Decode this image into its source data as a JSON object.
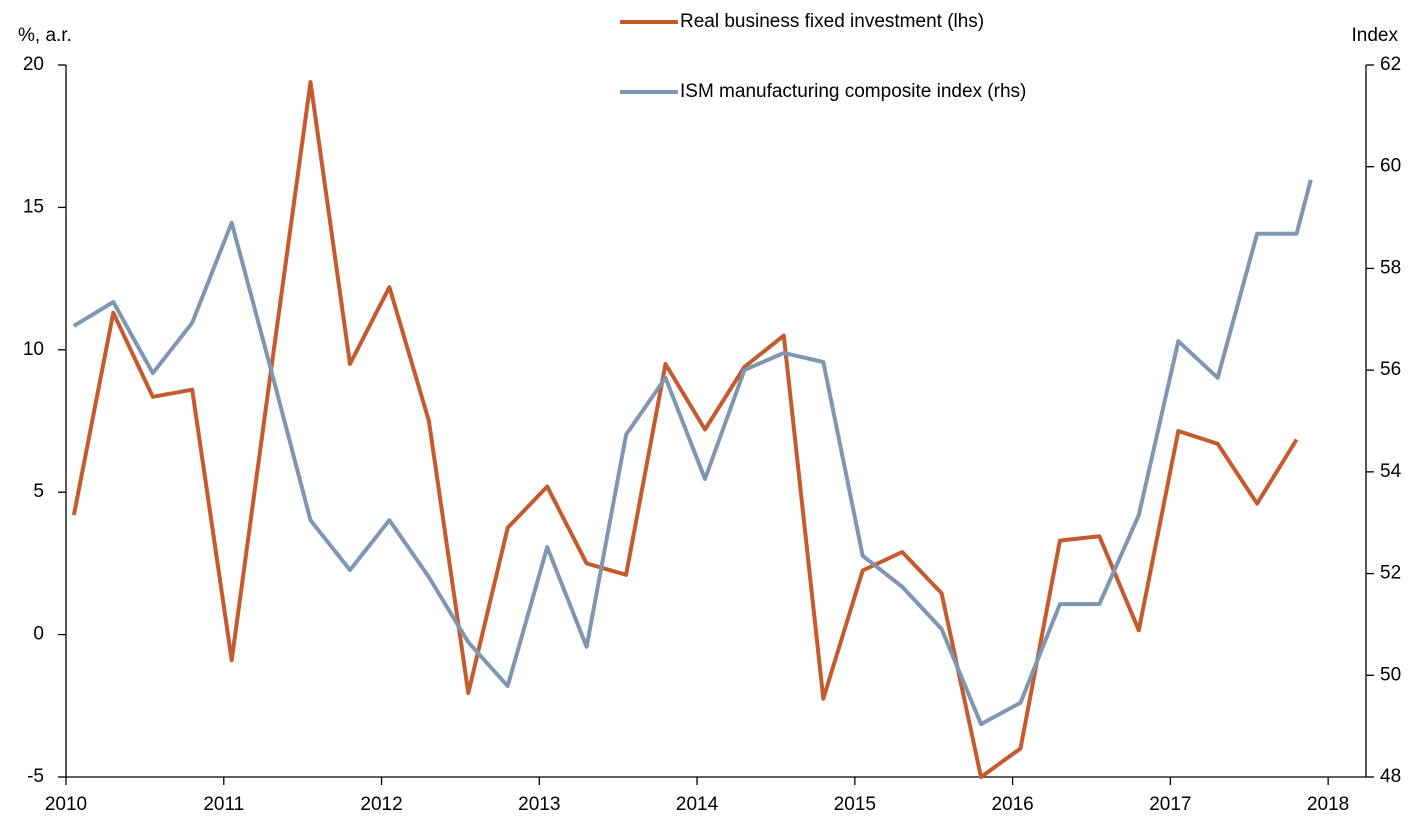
{
  "chart_data": {
    "type": "line",
    "y_label": "%, a.r.",
    "y2_label": "Index",
    "x": [
      2010.05,
      2010.3,
      2010.55,
      2010.8,
      2011.05,
      2011.3,
      2011.55,
      2011.8,
      2012.05,
      2012.3,
      2012.55,
      2012.8,
      2013.05,
      2013.3,
      2013.55,
      2013.8,
      2014.05,
      2014.3,
      2014.55,
      2014.8,
      2015.05,
      2015.3,
      2015.55,
      2015.8,
      2016.05,
      2016.3,
      2016.55,
      2016.8,
      2017.05,
      2017.3,
      2017.55,
      2017.8,
      2017.89
    ],
    "series": [
      {
        "name": "Real business fixed investment (lhs)",
        "color": "#c55a2f",
        "axis": "y",
        "values": [
          4.2,
          11.3,
          8.35,
          8.6,
          -0.9,
          9.3,
          19.4,
          9.5,
          12.2,
          7.5,
          -2.05,
          3.75,
          5.2,
          2.5,
          2.1,
          9.5,
          7.2,
          9.4,
          10.5,
          -2.25,
          2.25,
          2.9,
          1.45,
          -5,
          -4,
          3.3,
          3.45,
          0.15,
          7.15,
          6.7,
          4.6,
          6.85,
          null
        ]
      },
      {
        "name": "ISM manufacturing composite index (rhs)",
        "color": "#7f96b2",
        "axis": "y2",
        "values": [
          56.87,
          57.34,
          55.94,
          56.93,
          58.9,
          56.0,
          53.05,
          52.07,
          53.05,
          51.93,
          50.65,
          49.79,
          52.52,
          50.56,
          54.73,
          55.85,
          53.86,
          56.0,
          56.34,
          56.16,
          52.35,
          51.74,
          50.91,
          49.04,
          49.46,
          51.4,
          51.4,
          53.15,
          56.57,
          55.85,
          58.68,
          58.68,
          59.74
        ]
      }
    ],
    "xlim": [
      2010,
      2018.24
    ],
    "xticks": [
      2010,
      2011,
      2012,
      2013,
      2014,
      2015,
      2016,
      2017,
      2018
    ],
    "ylim": [
      -5,
      20
    ],
    "yticks": [
      -5,
      0,
      5,
      10,
      15,
      20
    ],
    "y2lim": [
      48,
      62
    ],
    "y2ticks": [
      48,
      50,
      52,
      54,
      56,
      58,
      60,
      62
    ],
    "grid": false
  }
}
